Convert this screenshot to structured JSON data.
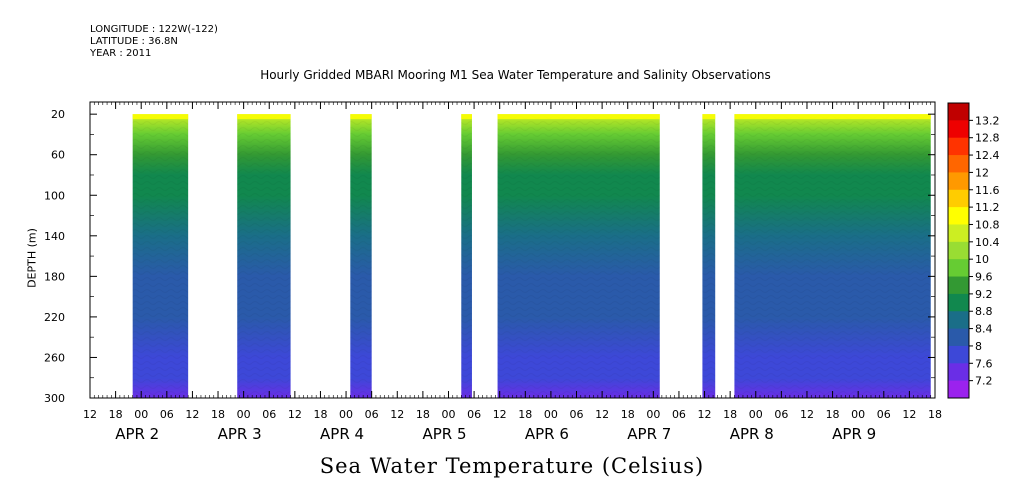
{
  "meta": {
    "longitude": "LONGITUDE : 122W(-122)",
    "latitude": "LATITUDE : 36.8N",
    "year": "YEAR : 2011"
  },
  "chart_data": {
    "type": "heatmap",
    "title": "Hourly Gridded MBARI Mooring M1 Sea Water Temperature and Salinity Observations",
    "xlabel": "",
    "ylabel": "DEPTH (m)",
    "colorbar_label": "Sea Water Temperature (Celsius)",
    "x_unit": "hours since APR 1 12:00 2011",
    "xlim": [
      0,
      198
    ],
    "ylim": [
      300,
      8
    ],
    "y_ticks": [
      20,
      60,
      100,
      140,
      180,
      220,
      260,
      300
    ],
    "x_hour_ticks": [
      "12",
      "18",
      "00",
      "06",
      "12",
      "18",
      "00",
      "06",
      "12",
      "18",
      "00",
      "06",
      "12",
      "18",
      "00",
      "06",
      "12",
      "18",
      "00",
      "06",
      "12",
      "18",
      "00",
      "06",
      "12",
      "18",
      "00",
      "06",
      "12",
      "18",
      "00",
      "06",
      "12",
      "18"
    ],
    "date_labels": [
      {
        "label": "APR  2",
        "hour": 12
      },
      {
        "label": "APR  3",
        "hour": 36
      },
      {
        "label": "APR  4",
        "hour": 60
      },
      {
        "label": "APR  5",
        "hour": 84
      },
      {
        "label": "APR  6",
        "hour": 108
      },
      {
        "label": "APR  7",
        "hour": 132
      },
      {
        "label": "APR  8",
        "hour": 156
      },
      {
        "label": "APR  9",
        "hour": 180
      }
    ],
    "data_segments_hours": [
      [
        10,
        23
      ],
      [
        34.5,
        47
      ],
      [
        61,
        66
      ],
      [
        87,
        89.5
      ],
      [
        95.5,
        127
      ],
      [
        127,
        133.5
      ],
      [
        143.5,
        146.5
      ],
      [
        151,
        197
      ]
    ],
    "depth_profile": {
      "depths": [
        20,
        40,
        60,
        80,
        100,
        140,
        180,
        220,
        260,
        280,
        300
      ],
      "temperature": [
        10.6,
        9.9,
        9.4,
        9.1,
        8.9,
        8.6,
        8.3,
        8.0,
        7.8,
        7.6,
        7.4
      ]
    },
    "colorbar": {
      "levels": [
        13.2,
        12.8,
        12.4,
        12,
        11.6,
        11.2,
        10.8,
        10.4,
        10,
        9.6,
        9.2,
        8.8,
        8.4,
        8,
        7.6,
        7.2
      ],
      "colors": [
        "#c00000",
        "#ee0000",
        "#ff3300",
        "#ff6600",
        "#ff9900",
        "#ffcc00",
        "#ffff00",
        "#ccee22",
        "#99dd33",
        "#66cc33",
        "#339933",
        "#11884e",
        "#1a6e88",
        "#2a5aaa",
        "#3d48d8",
        "#6a2ee6",
        "#9b22ee"
      ]
    },
    "grid": false
  }
}
